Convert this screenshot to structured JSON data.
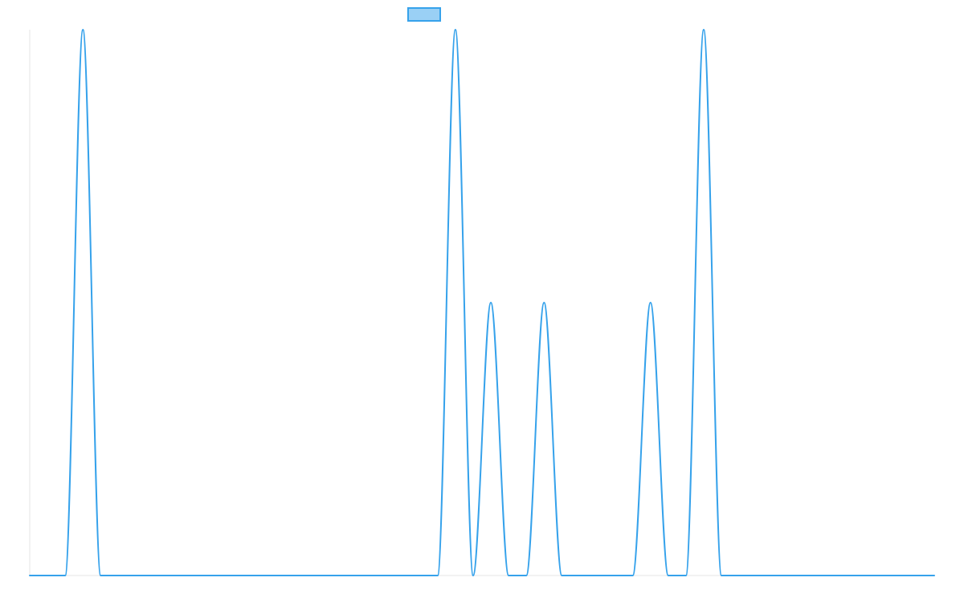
{
  "chart_data": {
    "type": "line",
    "legend": {
      "position": "top-center",
      "items": [
        {
          "name": "",
          "color": "#36A2EB",
          "fill": "#9AD0F5"
        }
      ]
    },
    "grid": false,
    "xlim": [
      0,
      51
    ],
    "ylim": [
      0,
      1
    ],
    "series": [
      {
        "name": "",
        "color": "#36A2EB",
        "x": [
          0,
          1,
          2,
          3,
          4,
          5,
          6,
          7,
          8,
          9,
          10,
          11,
          12,
          13,
          14,
          15,
          16,
          17,
          18,
          19,
          20,
          21,
          22,
          23,
          24,
          25,
          26,
          27,
          28,
          29,
          30,
          31,
          32,
          33,
          34,
          35,
          36,
          37,
          38,
          39,
          40,
          41,
          42,
          43,
          44,
          45,
          46,
          47,
          48,
          49,
          50,
          51
        ],
        "y": [
          0,
          0,
          0,
          1,
          0,
          0,
          0,
          0,
          0,
          0,
          0,
          0,
          0,
          0,
          0,
          0,
          0,
          0,
          0,
          0,
          0,
          0,
          0,
          0,
          1,
          0,
          0.5,
          0,
          0,
          0.5,
          0,
          0,
          0,
          0,
          0,
          0.5,
          0,
          0,
          1,
          0,
          0,
          0,
          0,
          0,
          0,
          0,
          0,
          0,
          0,
          0,
          0,
          0
        ]
      }
    ]
  }
}
